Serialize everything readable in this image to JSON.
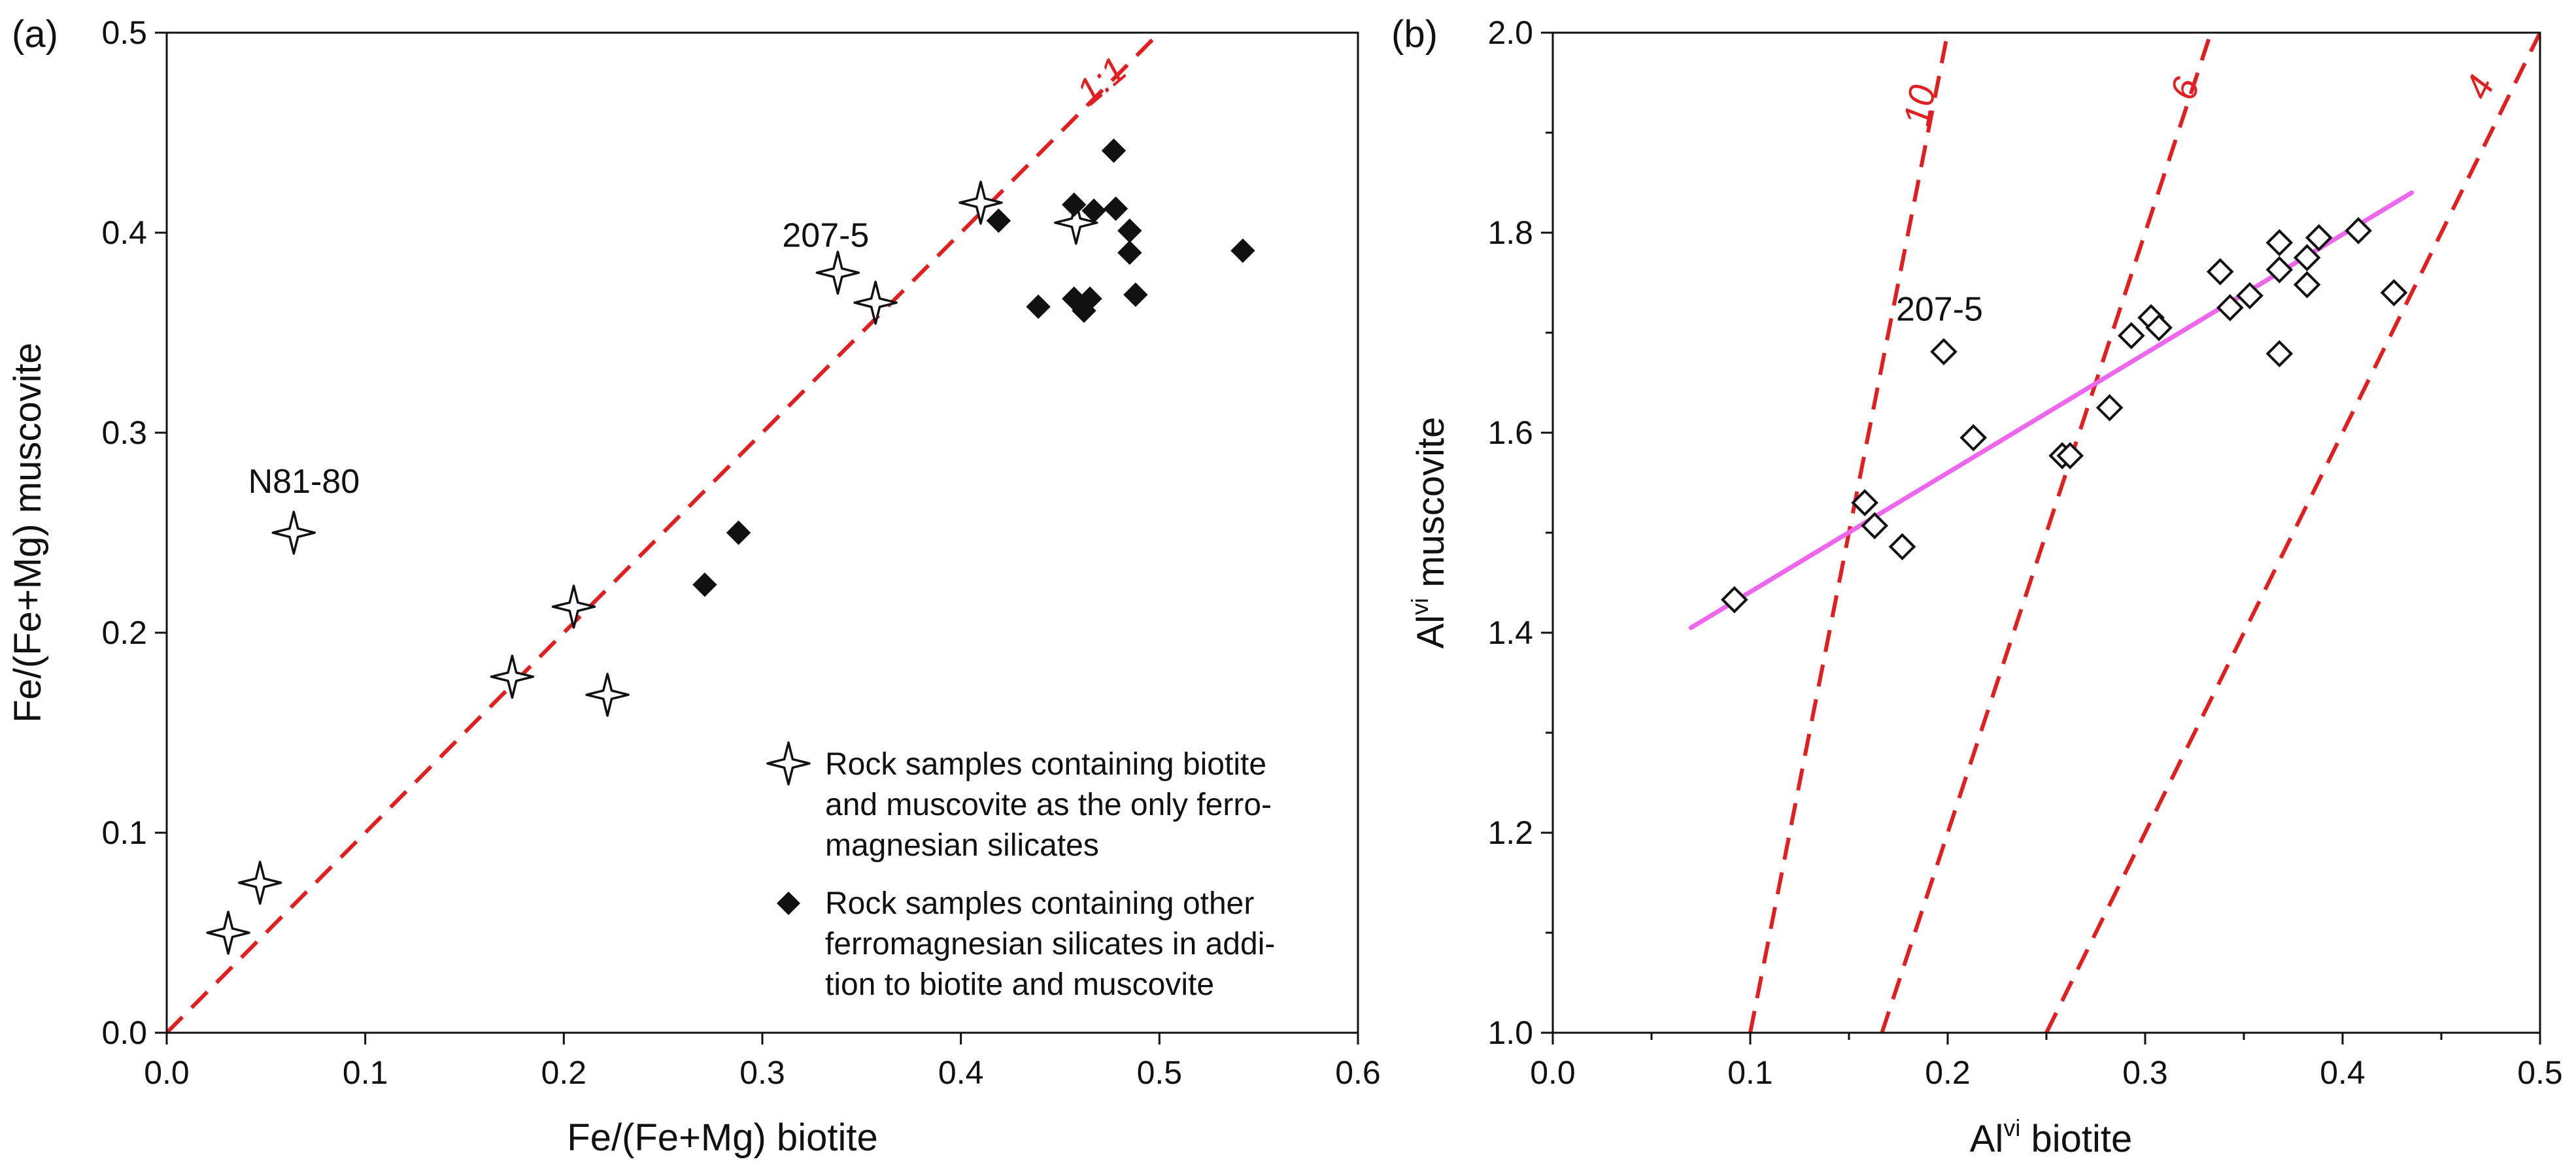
{
  "chart_data": [
    {
      "type": "scatter",
      "panel_label": "(a)",
      "xlabel": "Fe/(Fe+Mg) biotite",
      "ylabel": "Fe/(Fe+Mg) muscovite",
      "xlim": [
        0,
        0.6
      ],
      "ylim": [
        0,
        0.5
      ],
      "x_ticks": [
        "0.0",
        "0.1",
        "0.2",
        "0.3",
        "0.4",
        "0.5",
        "0.6"
      ],
      "y_ticks": [
        "0.0",
        "0.1",
        "0.2",
        "0.3",
        "0.4",
        "0.5"
      ],
      "reference_lines": [
        {
          "label": "1:1",
          "slope": 1,
          "intercept": 0,
          "color": "#e02020",
          "style": "dashed"
        }
      ],
      "series": [
        {
          "name": "Rock samples containing biotite and muscovite as the only ferromagnesian silicates",
          "legend_lines": [
            "Rock samples containing biotite",
            "and muscovite as the only ferro-",
            "magnesian silicates"
          ],
          "marker": "open-star",
          "points": [
            [
              0.031,
              0.05
            ],
            [
              0.047,
              0.075
            ],
            [
              0.064,
              0.25
            ],
            [
              0.174,
              0.178
            ],
            [
              0.205,
              0.213
            ],
            [
              0.222,
              0.169
            ],
            [
              0.338,
              0.38
            ],
            [
              0.357,
              0.365
            ],
            [
              0.41,
              0.415
            ],
            [
              0.458,
              0.405
            ]
          ]
        },
        {
          "name": "Rock samples containing other ferromagnesian silicates in addition to biotite and muscovite",
          "legend_lines": [
            "Rock samples containing other",
            "ferromagnesian silicates in addi-",
            "tion to biotite and muscovite"
          ],
          "marker": "filled-diamond",
          "points": [
            [
              0.271,
              0.224
            ],
            [
              0.288,
              0.25
            ],
            [
              0.419,
              0.406
            ],
            [
              0.439,
              0.363
            ],
            [
              0.457,
              0.367
            ],
            [
              0.457,
              0.414
            ],
            [
              0.462,
              0.361
            ],
            [
              0.465,
              0.367
            ],
            [
              0.467,
              0.411
            ],
            [
              0.477,
              0.441
            ],
            [
              0.478,
              0.412
            ],
            [
              0.485,
              0.401
            ],
            [
              0.485,
              0.39
            ],
            [
              0.488,
              0.369
            ],
            [
              0.542,
              0.391
            ]
          ]
        }
      ],
      "annotations": [
        {
          "text": "207-5",
          "x": 0.31,
          "y": 0.393
        },
        {
          "text": "N81-80",
          "x": 0.07,
          "y": 0.27
        }
      ],
      "legend": "bottom-right"
    },
    {
      "type": "scatter",
      "panel_label": "(b)",
      "xlabel_base": "Al",
      "xlabel_sup": "vi",
      "xlabel_rest": " biotite",
      "ylabel_base": "Al",
      "ylabel_sup": "vi",
      "ylabel_rest": " muscovite",
      "xlim": [
        0,
        0.5
      ],
      "ylim": [
        1.0,
        2.0
      ],
      "x_ticks": [
        "0.0",
        "0.1",
        "0.2",
        "0.3",
        "0.4",
        "0.5"
      ],
      "y_ticks": [
        "1.0",
        "1.2",
        "1.4",
        "1.6",
        "1.8",
        "2.0"
      ],
      "reference_lines": [
        {
          "label": "10",
          "x_at_ymin": 0.1,
          "x_at_ymax": 0.2,
          "color": "#e02020",
          "style": "dashed"
        },
        {
          "label": "6",
          "x_at_ymin": 0.1667,
          "x_at_ymax": 0.3333,
          "color": "#e02020",
          "style": "dashed"
        },
        {
          "label": "4",
          "x_at_ymin": 0.25,
          "x_at_ymax": 0.5,
          "color": "#e02020",
          "style": "dashed"
        }
      ],
      "fit_line": {
        "x": [
          0.07,
          0.435
        ],
        "y": [
          1.405,
          1.84
        ],
        "color": "#ee66ee"
      },
      "series": [
        {
          "name": "samples",
          "marker": "open-diamond",
          "points": [
            [
              0.092,
              1.433
            ],
            [
              0.158,
              1.53
            ],
            [
              0.163,
              1.507
            ],
            [
              0.177,
              1.486
            ],
            [
              0.198,
              1.681
            ],
            [
              0.213,
              1.595
            ],
            [
              0.258,
              1.577
            ],
            [
              0.262,
              1.577
            ],
            [
              0.282,
              1.625
            ],
            [
              0.293,
              1.697
            ],
            [
              0.303,
              1.715
            ],
            [
              0.307,
              1.705
            ],
            [
              0.338,
              1.761
            ],
            [
              0.343,
              1.725
            ],
            [
              0.353,
              1.737
            ],
            [
              0.368,
              1.79
            ],
            [
              0.368,
              1.763
            ],
            [
              0.368,
              1.679
            ],
            [
              0.382,
              1.748
            ],
            [
              0.382,
              1.775
            ],
            [
              0.388,
              1.795
            ],
            [
              0.408,
              1.802
            ],
            [
              0.426,
              1.74
            ]
          ]
        }
      ],
      "annotations": [
        {
          "text": "207-5",
          "x": 0.197,
          "y": 1.712
        }
      ]
    }
  ]
}
